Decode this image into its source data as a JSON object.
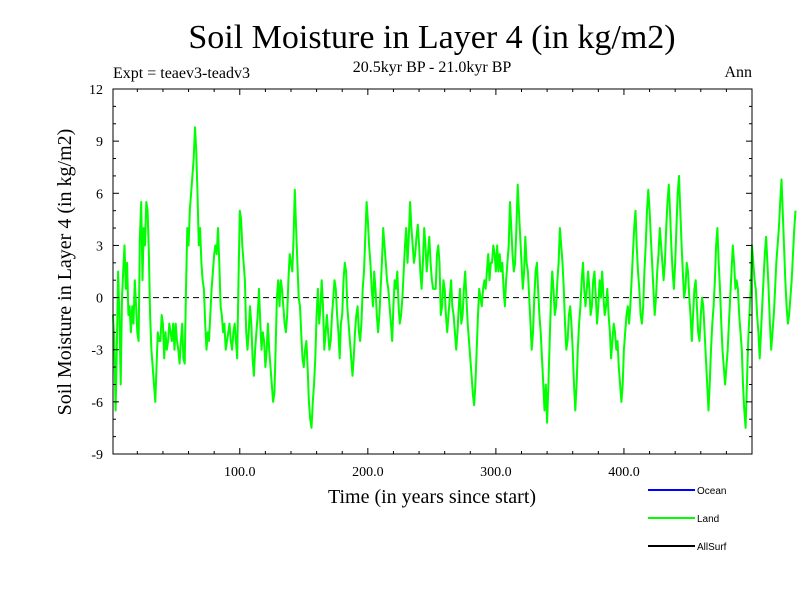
{
  "chart_data": {
    "type": "line",
    "title": "Soil Moisture in Layer 4 (in kg/m2)",
    "subtitle": "20.5kyr BP - 21.0kyr BP",
    "experiment_label": "Expt = teaev3-teadv3",
    "season_label": "Ann",
    "xlabel": "Time (in years since start)",
    "ylabel": "Soil Moisture in Layer 4 (in kg/m2)",
    "xlim": [
      1,
      500
    ],
    "ylim": [
      -9,
      12
    ],
    "x_ticks": [
      100,
      200,
      300,
      400
    ],
    "x_tick_labels": [
      "100.0",
      "200.0",
      "300.0",
      "400.0"
    ],
    "y_ticks": [
      -9,
      -6,
      -3,
      0,
      3,
      6,
      9,
      12
    ],
    "y_tick_labels": [
      "-9",
      "-6",
      "-3",
      "0",
      "3",
      "6",
      "9",
      "12"
    ],
    "zero_line": "dashed",
    "legend_position": "bottom-right",
    "series": [
      {
        "name": "Ocean",
        "color": "#0000ff",
        "values": []
      },
      {
        "name": "Land",
        "color": "#00ff00",
        "x_start": 1,
        "x_step": 1,
        "values": [
          -1,
          -2.5,
          -6.5,
          -3,
          1.5,
          -1,
          -5,
          0,
          1.5,
          3,
          0.5,
          2,
          -1,
          -0.5,
          -2,
          -0.5,
          -1.5,
          1,
          -0.5,
          -2,
          -2.5,
          3.5,
          5.5,
          1,
          4,
          3,
          5.5,
          5,
          2.5,
          -1,
          -3,
          -4,
          -5,
          -6,
          -4,
          -2,
          -2.5,
          -2.5,
          -1,
          -1.5,
          -3.5,
          -2,
          -3,
          -2.5,
          -1.5,
          -2,
          -2.5,
          -1.5,
          -3,
          -1.5,
          -2.5,
          -3,
          -3.8,
          -2.5,
          -1.5,
          -3.5,
          -3.8,
          0.5,
          4,
          3,
          5,
          6,
          7,
          8,
          9.8,
          8.5,
          6,
          3,
          4,
          2,
          1,
          0.5,
          -1.5,
          -3,
          -2,
          -2.5,
          -1,
          0.5,
          1.5,
          2.5,
          3,
          2.5,
          4,
          2,
          -0.5,
          -1,
          -2,
          -1.5,
          -3,
          -2.5,
          -2,
          -1.5,
          -2.5,
          -3,
          -2,
          -1.5,
          -2.5,
          -3.5,
          1,
          5,
          4.5,
          3,
          2,
          1,
          -2,
          -3,
          -2,
          -0.5,
          -1.5,
          -3.5,
          -4.5,
          -3,
          -2,
          -1,
          0.5,
          -1.5,
          -3,
          -2,
          -2.5,
          -4,
          -3,
          -1.5,
          -3,
          -4,
          -5,
          -6,
          -5.5,
          -3,
          0,
          1,
          -0.5,
          1,
          0.5,
          -0.5,
          -1.5,
          -2,
          -1,
          1,
          2.5,
          2,
          1.5,
          3.5,
          6.2,
          4,
          2,
          0,
          -0.5,
          -2,
          -3.5,
          -4,
          -3,
          -2.5,
          -4,
          -6,
          -7,
          -7.5,
          -6,
          -5,
          -3.5,
          -1,
          0.5,
          -1.5,
          -0.5,
          1,
          -0.5,
          -3,
          -2,
          -1,
          -2,
          -3,
          -2.5,
          -1,
          0,
          1,
          0.5,
          -1,
          -2,
          -3.5,
          -1.5,
          -1,
          1,
          2,
          1.5,
          -0.5,
          -1.5,
          -2.5,
          -3.5,
          -4.5,
          -3.5,
          -2,
          -1,
          -0.5,
          -2,
          -2.5,
          -1.5,
          0.5,
          1.5,
          3.5,
          5.5,
          4.5,
          3,
          2,
          0.5,
          -0.5,
          1.5,
          0.5,
          -1,
          -2,
          -1,
          0.5,
          2,
          4,
          3,
          2,
          1,
          0.5,
          -0.5,
          -1.5,
          -2.5,
          -0.5,
          1,
          0.5,
          1.5,
          -0.5,
          -1.5,
          -1,
          0,
          1.5,
          3,
          4,
          2,
          3.5,
          5.5,
          4,
          3,
          2,
          2.5,
          3.5,
          4.2,
          3,
          1.5,
          0.5,
          2,
          4,
          3,
          1.5,
          2.5,
          3.5,
          2,
          1,
          0.5,
          0.5,
          0.5,
          2.5,
          3,
          2,
          -1,
          -0.5,
          1,
          0.5,
          -1,
          -2,
          -1,
          0,
          1,
          -0.5,
          -1,
          -2,
          -3,
          -2,
          -0.5,
          0.5,
          -1.5,
          -1,
          0.5,
          1.5,
          0,
          -1.5,
          -2.5,
          -3.5,
          -4.5,
          -5.5,
          -6.2,
          -5,
          -3,
          -1,
          0.5,
          0,
          -0.5,
          0.5,
          1,
          0.5,
          1.5,
          2.5,
          1,
          2,
          2,
          3,
          2.5,
          1.5,
          3,
          1.5,
          2.5,
          1.5,
          2,
          0.5,
          -0.5,
          1,
          2,
          3,
          5.5,
          4,
          2.5,
          1.5,
          2,
          4,
          6.5,
          5,
          3.5,
          2,
          0.5,
          1.5,
          3.5,
          2,
          1.5,
          0,
          -1.5,
          -3,
          -2,
          0,
          1.5,
          2,
          0.5,
          -1,
          -2,
          -3.5,
          -5,
          -6.5,
          -5,
          -7.2,
          -5,
          -2.5,
          0,
          1.5,
          0.5,
          -1,
          -0.5,
          1,
          2,
          4,
          3,
          2,
          0.5,
          -1.5,
          -3,
          -2.5,
          -1,
          -0.5,
          -1.5,
          -3,
          -5,
          -6.5,
          -5,
          -3,
          -1.5,
          -0.5,
          1,
          2,
          0.5,
          -0.5,
          0.5,
          1.5,
          0.5,
          -1,
          -0.5,
          1,
          1.5,
          0,
          -1.5,
          -0.5,
          1,
          0,
          1.5,
          0,
          -1,
          -0.5,
          0.5,
          -1,
          -2,
          -3.5,
          -2.5,
          -1.5,
          -2,
          -3,
          -2.5,
          -4,
          -5,
          -6,
          -5,
          -3,
          -2,
          -1,
          -0.5,
          -1.5,
          -0.5,
          1,
          2.5,
          4,
          5,
          3,
          1.5,
          0.5,
          -1,
          -1.5,
          -0.5,
          1.5,
          3,
          5,
          6.2,
          5,
          3.5,
          2,
          0.5,
          -1,
          0,
          1.5,
          2.5,
          4,
          3,
          2,
          1,
          2,
          4,
          5.5,
          6.5,
          5,
          3,
          1.5,
          0.5,
          2,
          4,
          6,
          7,
          5,
          3,
          1.5,
          0,
          0.5,
          2,
          1.5,
          0,
          -1,
          -2.5,
          -1,
          0.5,
          1,
          -0.5,
          -2,
          -2.5,
          -1,
          0,
          -0.5,
          -2,
          -3.5,
          -5,
          -6.5,
          -5,
          -3,
          -1.5,
          -0.5,
          1,
          3,
          4,
          2,
          0.5,
          -1.5,
          -3,
          -4,
          -5,
          -4,
          -3,
          -1.5,
          0,
          1.5,
          3,
          2,
          0.5,
          1,
          0.5,
          -1,
          -2,
          -3,
          -5,
          -6.5,
          -7.5,
          -5,
          -2.5,
          -1,
          0.5,
          3,
          2,
          1,
          0.5,
          -1,
          -2,
          -3.5,
          -2,
          -0.5,
          1,
          2.5,
          3.5,
          2,
          0.5,
          -1.5,
          -3,
          -2,
          -1,
          0.5,
          2,
          3,
          4,
          5.5,
          6.8,
          5,
          3,
          1,
          -0.5,
          -1.5,
          -1,
          0,
          1,
          2.5,
          4,
          5
        ]
      },
      {
        "name": "AllSurf",
        "color": "#000000",
        "values": []
      }
    ]
  }
}
